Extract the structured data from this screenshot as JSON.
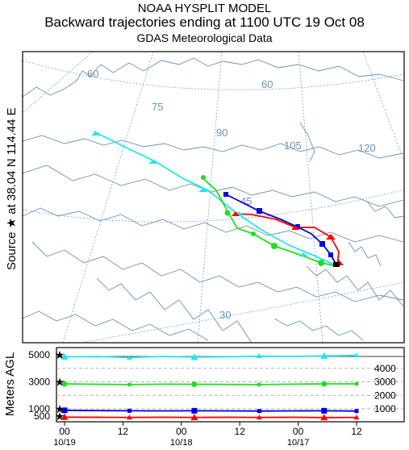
{
  "header": {
    "title": "NOAA HYSPLIT MODEL",
    "subtitle": "Backward trajectories ending at 1100 UTC 19 Oct 08",
    "data_source": "GDAS Meteorological Data"
  },
  "source_label": "Source ★ at   38.04 N  114.44 E",
  "map": {
    "longitude_labels": [
      "60",
      "75",
      "90",
      "105",
      "120"
    ],
    "latitude_labels": [
      "60",
      "45",
      "30"
    ],
    "colors": {
      "coast": "#6f8fb5",
      "grid": "#7aa3c2",
      "grid_label": "#6e92b5"
    }
  },
  "trajectories": [
    {
      "name": "red",
      "color": "#ff0000",
      "marker": "triangle"
    },
    {
      "name": "blue",
      "color": "#0000dd",
      "marker": "square"
    },
    {
      "name": "green",
      "color": "#22dd22",
      "marker": "circle"
    },
    {
      "name": "cyan",
      "color": "#22e6e6",
      "marker": "triangle"
    }
  ],
  "chart_data": {
    "type": "line",
    "ylabel": "Meters AGL",
    "left_tick_labels": [
      "5000",
      "3000",
      "1000",
      "500"
    ],
    "right_tick_labels": [
      "4000",
      "3000",
      "2000",
      "1000"
    ],
    "x_tick_labels": [
      "00",
      "12",
      "00",
      "12",
      "00",
      "12"
    ],
    "date_labels": [
      "10/19",
      "10/18",
      "10/17"
    ],
    "x_hours_before": [
      0,
      12,
      24,
      36,
      48,
      60
    ],
    "ylim": [
      0,
      5300
    ],
    "series": [
      {
        "color": "#22e6e6",
        "start": 5000,
        "values": [
          4850,
          4870,
          4800,
          4880,
          4830,
          4850,
          4900,
          4880,
          4920,
          4960
        ]
      },
      {
        "color": "#22dd22",
        "start": 3000,
        "values": [
          2850,
          2820,
          2800,
          2830,
          2820,
          2810,
          2800,
          2830,
          2850,
          2850
        ]
      },
      {
        "color": "#0000dd",
        "start": 1000,
        "values": [
          900,
          880,
          870,
          860,
          870,
          860,
          850,
          860,
          870,
          850
        ]
      },
      {
        "color": "#ff0000",
        "start": 500,
        "values": [
          430,
          420,
          410,
          420,
          410,
          420,
          410,
          420,
          400,
          410
        ]
      }
    ]
  }
}
